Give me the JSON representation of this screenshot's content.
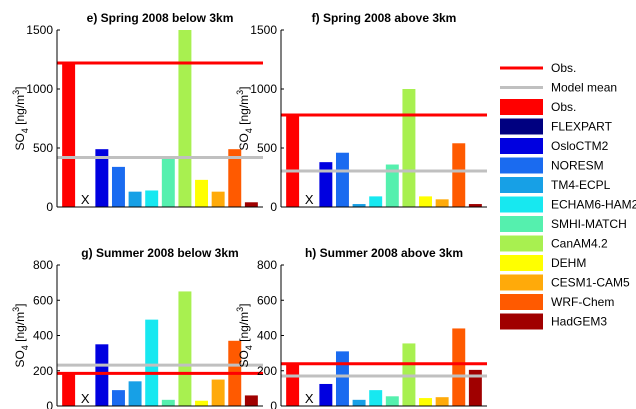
{
  "chart_data": {
    "type": "bar",
    "categories": [
      "Obs.",
      "FLEXPART",
      "OsloCTM2",
      "NORESM",
      "TM4-ECPL",
      "ECHAM6-HAM2",
      "SMHI-MATCH",
      "CanAM4.2",
      "DEHM",
      "CESM1-CAM5",
      "WRF-Chem",
      "HadGEM3"
    ],
    "colors": [
      "#ff0000",
      "#000080",
      "#0000e0",
      "#1a6bf0",
      "#17a0e6",
      "#17e8f0",
      "#55f0ae",
      "#a8f050",
      "#ffff00",
      "#ffaa0a",
      "#ff5a00",
      "#a00000"
    ],
    "legend": {
      "placement": "right",
      "line_items": [
        {
          "label": "Obs.",
          "color": "#ff0000"
        },
        {
          "label": "Model mean",
          "color": "#c0c0c0"
        }
      ]
    },
    "ylabel": "SO",
    "ylabel_sub": "4",
    "ylabel_unit": " [ng/m",
    "ylabel_sup": "3",
    "ylabel_close": "]",
    "missing_marker": "X",
    "panels": [
      {
        "title": "e) Spring 2008 below 3km",
        "ylim": [
          0,
          1500
        ],
        "yticks": [
          0,
          500,
          1000,
          1500
        ],
        "values": [
          1220,
          null,
          490,
          340,
          130,
          140,
          420,
          1500,
          230,
          130,
          490,
          40
        ],
        "obs_line": 1220,
        "model_mean": 420
      },
      {
        "title": "f) Spring 2008 above 3km",
        "ylim": [
          0,
          1500
        ],
        "yticks": [
          0,
          500,
          1000,
          1500
        ],
        "values": [
          780,
          null,
          380,
          460,
          25,
          90,
          360,
          1000,
          90,
          65,
          540,
          25
        ],
        "obs_line": 780,
        "model_mean": 305
      },
      {
        "title": "g) Summer 2008 below 3km",
        "ylim": [
          0,
          800
        ],
        "yticks": [
          0,
          200,
          400,
          600,
          800
        ],
        "values": [
          185,
          null,
          350,
          90,
          140,
          490,
          35,
          650,
          30,
          150,
          370,
          60
        ],
        "obs_line": 185,
        "model_mean": 232
      },
      {
        "title": "h) Summer 2008 above 3km",
        "ylim": [
          0,
          800
        ],
        "yticks": [
          0,
          200,
          400,
          600,
          800
        ],
        "values": [
          240,
          null,
          125,
          310,
          35,
          90,
          55,
          355,
          45,
          50,
          440,
          205
        ],
        "obs_line": 240,
        "model_mean": 170
      }
    ]
  }
}
